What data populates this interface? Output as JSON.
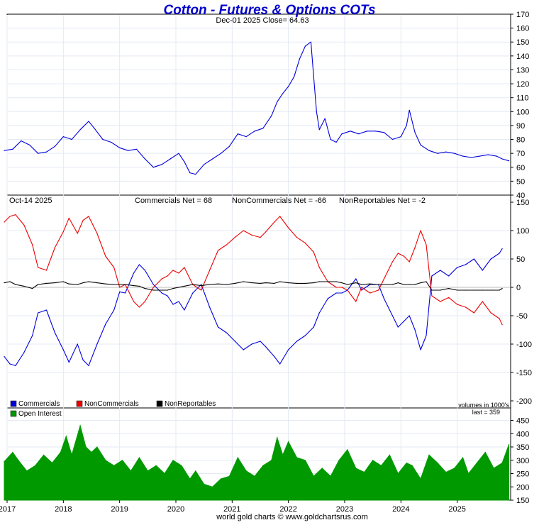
{
  "title": "Cotton - Futures & Options COTs",
  "footer": "world gold charts © www.goldchartsrus.com",
  "colors": {
    "price": "#0000dd",
    "commercials": "#0000dd",
    "noncommercials": "#ee0000",
    "nonreportables": "#000000",
    "open_interest": "#009900",
    "grid": "#e3e9f3",
    "title": "#0000cc"
  },
  "x_axis": {
    "ticks": [
      "2017",
      "2018",
      "2019",
      "2020",
      "2021",
      "2022",
      "2023",
      "2024",
      "2025"
    ],
    "range": [
      2017.0,
      2025.95
    ]
  },
  "chart_data": [
    {
      "type": "line",
      "panel": "price",
      "subtitle": "Dec-01  2025  Close= 64.63",
      "ylim": [
        40,
        170
      ],
      "yticks": [
        40,
        50,
        60,
        70,
        80,
        90,
        100,
        110,
        120,
        130,
        140,
        150,
        160,
        170
      ],
      "x": [
        2016.95,
        2017.1,
        2017.25,
        2017.4,
        2017.55,
        2017.7,
        2017.85,
        2018.0,
        2018.15,
        2018.3,
        2018.45,
        2018.55,
        2018.7,
        2018.85,
        2019.0,
        2019.15,
        2019.3,
        2019.45,
        2019.6,
        2019.75,
        2019.9,
        2020.05,
        2020.15,
        2020.25,
        2020.35,
        2020.5,
        2020.65,
        2020.8,
        2020.95,
        2021.1,
        2021.25,
        2021.4,
        2021.55,
        2021.7,
        2021.8,
        2021.9,
        2022.0,
        2022.1,
        2022.2,
        2022.3,
        2022.4,
        2022.45,
        2022.5,
        2022.55,
        2022.65,
        2022.75,
        2022.85,
        2022.95,
        2023.1,
        2023.25,
        2023.4,
        2023.55,
        2023.7,
        2023.85,
        2024.0,
        2024.1,
        2024.15,
        2024.25,
        2024.35,
        2024.5,
        2024.65,
        2024.8,
        2024.95,
        2025.1,
        2025.25,
        2025.4,
        2025.55,
        2025.7,
        2025.8,
        2025.92
      ],
      "series": [
        {
          "name": "",
          "values": [
            72,
            73,
            79,
            76,
            70,
            71,
            75,
            82,
            80,
            87,
            93,
            88,
            80,
            78,
            74,
            72,
            73,
            66,
            60,
            62,
            66,
            70,
            64,
            56,
            55,
            62,
            66,
            70,
            75,
            84,
            82,
            86,
            88,
            97,
            107,
            113,
            118,
            125,
            138,
            147,
            150,
            125,
            100,
            87,
            95,
            80,
            78,
            84,
            86,
            84,
            86,
            86,
            85,
            80,
            82,
            90,
            101,
            85,
            76,
            72,
            70,
            71,
            70,
            68,
            67,
            68,
            69,
            68,
            66,
            64.63
          ]
        }
      ]
    },
    {
      "type": "line",
      "panel": "cot",
      "date_label": "Oct-14  2025",
      "ylim": [
        -200,
        150
      ],
      "yticks": [
        -200,
        -150,
        -100,
        -50,
        0,
        50,
        100,
        150
      ],
      "x": [
        2016.95,
        2017.05,
        2017.15,
        2017.3,
        2017.45,
        2017.55,
        2017.7,
        2017.85,
        2018.0,
        2018.1,
        2018.25,
        2018.35,
        2018.45,
        2018.6,
        2018.75,
        2018.9,
        2019.0,
        2019.1,
        2019.25,
        2019.35,
        2019.45,
        2019.6,
        2019.75,
        2019.85,
        2019.95,
        2020.05,
        2020.15,
        2020.3,
        2020.45,
        2020.6,
        2020.75,
        2020.9,
        2021.05,
        2021.2,
        2021.35,
        2021.5,
        2021.6,
        2021.75,
        2021.85,
        2022.0,
        2022.15,
        2022.3,
        2022.45,
        2022.55,
        2022.7,
        2022.85,
        2022.95,
        2023.05,
        2023.2,
        2023.3,
        2023.45,
        2023.6,
        2023.7,
        2023.85,
        2023.95,
        2024.05,
        2024.15,
        2024.25,
        2024.35,
        2024.45,
        2024.55,
        2024.7,
        2024.85,
        2025.0,
        2025.15,
        2025.3,
        2025.45,
        2025.6,
        2025.75,
        2025.8
      ],
      "series": [
        {
          "name": "Commercials",
          "values": [
            -122,
            -135,
            -138,
            -115,
            -85,
            -45,
            -40,
            -80,
            -110,
            -132,
            -100,
            -128,
            -138,
            -100,
            -65,
            -40,
            -8,
            -10,
            25,
            40,
            30,
            5,
            -10,
            -15,
            -30,
            -25,
            -40,
            -10,
            5,
            -35,
            -70,
            -80,
            -95,
            -110,
            -100,
            -95,
            -105,
            -122,
            -135,
            -110,
            -95,
            -85,
            -70,
            -45,
            -20,
            -10,
            -10,
            -5,
            15,
            -5,
            5,
            5,
            -20,
            -50,
            -70,
            -60,
            -50,
            -75,
            -110,
            -85,
            20,
            30,
            20,
            35,
            40,
            50,
            30,
            50,
            60,
            68
          ]
        },
        {
          "name": "NonCommercials",
          "values": [
            115,
            125,
            128,
            110,
            75,
            35,
            30,
            70,
            98,
            122,
            95,
            118,
            125,
            95,
            55,
            35,
            0,
            5,
            -25,
            -35,
            -25,
            0,
            15,
            20,
            30,
            25,
            35,
            5,
            -5,
            30,
            65,
            75,
            88,
            100,
            92,
            88,
            98,
            115,
            125,
            105,
            88,
            78,
            62,
            35,
            10,
            0,
            0,
            -5,
            -25,
            0,
            -10,
            -5,
            15,
            45,
            60,
            55,
            45,
            70,
            100,
            75,
            -15,
            -25,
            -18,
            -30,
            -35,
            -45,
            -25,
            -45,
            -55,
            -66
          ]
        },
        {
          "name": "NonReportables",
          "values": [
            8,
            10,
            5,
            2,
            -2,
            5,
            7,
            8,
            10,
            6,
            5,
            8,
            10,
            8,
            6,
            5,
            5,
            5,
            3,
            2,
            -2,
            -5,
            -5,
            -5,
            -2,
            0,
            2,
            5,
            3,
            5,
            6,
            5,
            7,
            10,
            8,
            7,
            8,
            7,
            10,
            8,
            7,
            7,
            8,
            10,
            10,
            10,
            8,
            5,
            8,
            5,
            6,
            5,
            5,
            5,
            8,
            5,
            5,
            5,
            8,
            10,
            -5,
            -5,
            -2,
            -5,
            -5,
            -5,
            -5,
            -5,
            -5,
            -2
          ]
        }
      ]
    },
    {
      "type": "area",
      "panel": "open_interest",
      "units_label": "volumes in 1000's",
      "last_label": "last = 359",
      "ylim": [
        150,
        470
      ],
      "yticks": [
        150,
        200,
        250,
        300,
        350,
        400,
        450
      ],
      "x": [
        2016.95,
        2017.1,
        2017.2,
        2017.35,
        2017.5,
        2017.65,
        2017.8,
        2017.95,
        2018.05,
        2018.15,
        2018.3,
        2018.4,
        2018.5,
        2018.6,
        2018.75,
        2018.9,
        2019.05,
        2019.2,
        2019.35,
        2019.5,
        2019.65,
        2019.8,
        2019.95,
        2020.1,
        2020.25,
        2020.35,
        2020.5,
        2020.65,
        2020.8,
        2020.95,
        2021.1,
        2021.25,
        2021.4,
        2021.55,
        2021.7,
        2021.8,
        2021.9,
        2022.0,
        2022.15,
        2022.3,
        2022.45,
        2022.6,
        2022.75,
        2022.9,
        2023.05,
        2023.2,
        2023.35,
        2023.5,
        2023.65,
        2023.8,
        2023.95,
        2024.1,
        2024.2,
        2024.35,
        2024.5,
        2024.65,
        2024.8,
        2024.95,
        2025.1,
        2025.2,
        2025.35,
        2025.5,
        2025.65,
        2025.8,
        2025.92
      ],
      "series": [
        {
          "name": "Open Interest",
          "values": [
            295,
            330,
            300,
            260,
            280,
            320,
            290,
            330,
            390,
            320,
            430,
            350,
            330,
            350,
            300,
            280,
            300,
            260,
            310,
            260,
            280,
            250,
            300,
            280,
            230,
            260,
            210,
            200,
            230,
            240,
            310,
            260,
            240,
            280,
            300,
            385,
            320,
            370,
            310,
            300,
            240,
            270,
            240,
            300,
            340,
            270,
            255,
            300,
            280,
            320,
            250,
            290,
            280,
            230,
            320,
            290,
            255,
            270,
            310,
            250,
            290,
            330,
            270,
            290,
            359
          ]
        }
      ]
    }
  ]
}
